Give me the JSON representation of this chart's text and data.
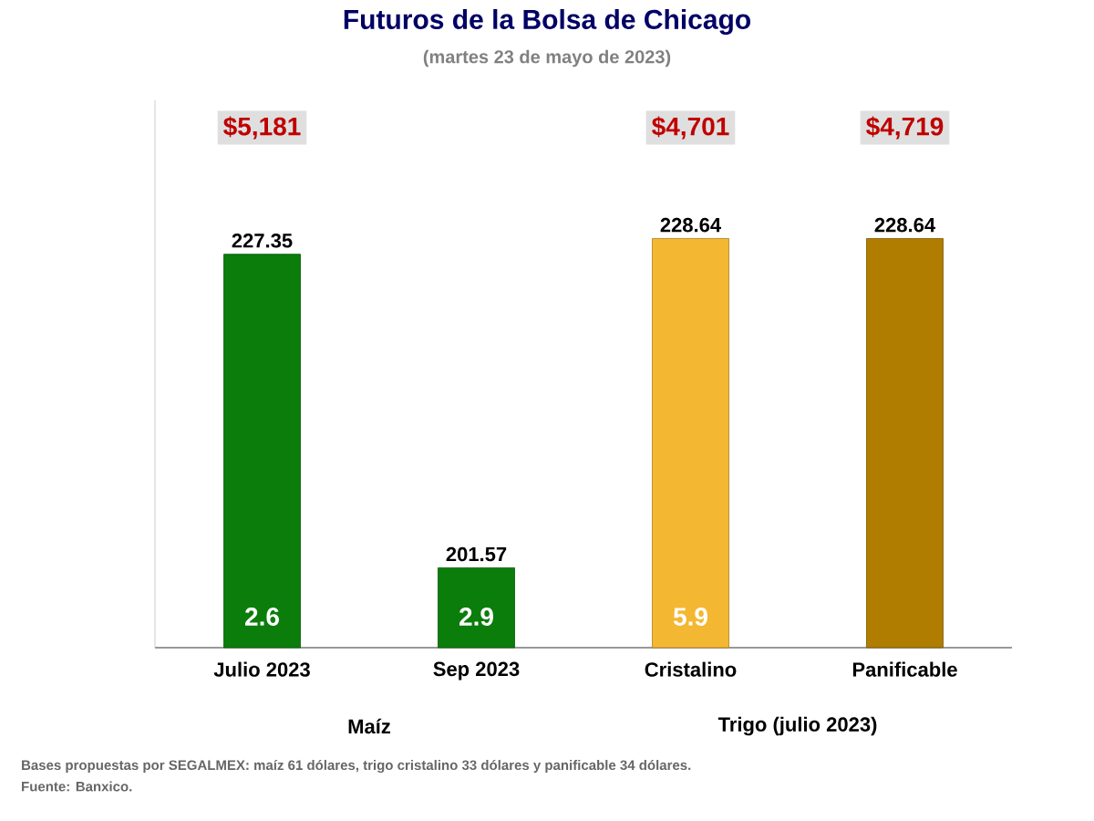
{
  "chart_data": {
    "type": "bar",
    "title": "Futuros de la Bolsa de Chicago",
    "subtitle": "(martes 23 de mayo de 2023)",
    "categories": [
      "Julio 2023",
      "Sep 2023",
      "Cristalino",
      "Panificable"
    ],
    "values": [
      227.35,
      201.57,
      228.64,
      228.64
    ],
    "colors": [
      "#0b7d0b",
      "#0b7d0b",
      "#f4b731",
      "#b07d00"
    ],
    "ylim": [
      195,
      240
    ],
    "tick_labels": "x",
    "data_labels": true,
    "annotations": [
      "$5,181",
      "$4,701",
      "$4,719",
      "2.6",
      "2.9",
      "5.9",
      "Maíz",
      "Trigo (julio 2023)",
      "Bases propuestas por SEGALMEX: maíz 61 dólares, trigo cristalino 33 dólares y panificable 34 dólares.",
      "Fuente: Banxico."
    ]
  }
}
